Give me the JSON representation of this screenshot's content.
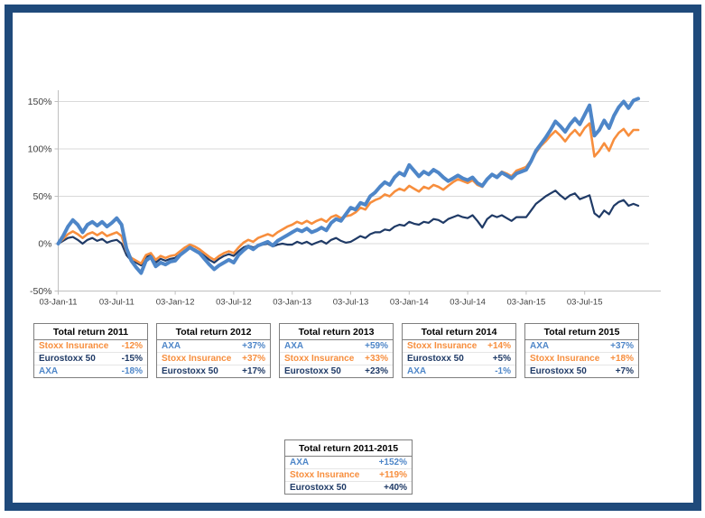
{
  "frame": {
    "border_color": "#1F4A7B"
  },
  "colors": {
    "axa": "#4E86C8",
    "stoxx": "#F78E3D",
    "euro": "#1F3A66",
    "grid": "#D9D9D9",
    "axis": "#BFBFBF",
    "tick_label": "#3F3F3F",
    "table_border": "#7F7F7F"
  },
  "chart_data": {
    "type": "line",
    "title": "",
    "xlabel": "",
    "ylabel": "",
    "grid": "horizontal",
    "legend": "none",
    "ylim": [
      -50,
      160
    ],
    "y_ticks": [
      {
        "label": "150%",
        "value": 150
      },
      {
        "label": "100%",
        "value": 100
      },
      {
        "label": "50%",
        "value": 50
      },
      {
        "label": "0%",
        "value": 0
      },
      {
        "label": "-50%",
        "value": -50
      }
    ],
    "x_ticks": [
      {
        "label": "03-Jan-11",
        "month": 0
      },
      {
        "label": "03-Jul-11",
        "month": 6
      },
      {
        "label": "03-Jan-12",
        "month": 12
      },
      {
        "label": "03-Jul-12",
        "month": 18
      },
      {
        "label": "03-Jan-13",
        "month": 24
      },
      {
        "label": "03-Jul-13",
        "month": 30
      },
      {
        "label": "03-Jan-14",
        "month": 36
      },
      {
        "label": "03-Jul-14",
        "month": 42
      },
      {
        "label": "03-Jan-15",
        "month": 48
      },
      {
        "label": "03-Jul-15",
        "month": 54
      }
    ],
    "sample_interval_months": 0.5,
    "unit": "cumulative total return %",
    "series": [
      {
        "name": "Eurostoxx 50",
        "key": "euro",
        "color": "#1F3A66",
        "width": 2.2,
        "values": [
          0,
          3,
          6,
          7,
          4,
          0,
          4,
          6,
          3,
          5,
          1,
          3,
          4,
          0,
          -12,
          -18,
          -20,
          -23,
          -14,
          -12,
          -20,
          -16,
          -18,
          -16,
          -15,
          -11,
          -7,
          -4,
          -6,
          -9,
          -13,
          -17,
          -20,
          -16,
          -13,
          -11,
          -13,
          -8,
          -4,
          -2,
          -4,
          -2,
          -1,
          0,
          -3,
          -1,
          0,
          -1,
          -1,
          2,
          0,
          2,
          -1,
          1,
          3,
          0,
          4,
          6,
          3,
          1,
          2,
          5,
          8,
          6,
          10,
          12,
          12,
          15,
          14,
          18,
          20,
          19,
          23,
          21,
          20,
          23,
          22,
          26,
          25,
          22,
          26,
          28,
          30,
          28,
          27,
          30,
          24,
          17,
          26,
          30,
          28,
          30,
          27,
          24,
          28,
          28,
          28,
          35,
          42,
          46,
          50,
          53,
          56,
          51,
          47,
          51,
          53,
          47,
          49,
          51,
          32,
          28,
          35,
          31,
          40,
          44,
          46,
          40,
          42,
          40
        ]
      },
      {
        "name": "Stoxx Insurance",
        "key": "stoxx",
        "color": "#F78E3D",
        "width": 2.6,
        "values": [
          0,
          5,
          10,
          13,
          10,
          6,
          10,
          12,
          9,
          12,
          8,
          10,
          12,
          8,
          -8,
          -15,
          -18,
          -21,
          -12,
          -10,
          -17,
          -13,
          -15,
          -13,
          -12,
          -8,
          -4,
          -1,
          -3,
          -6,
          -10,
          -14,
          -17,
          -13,
          -10,
          -8,
          -10,
          -4,
          1,
          4,
          2,
          6,
          8,
          10,
          8,
          12,
          15,
          18,
          20,
          23,
          21,
          24,
          21,
          24,
          26,
          23,
          28,
          30,
          27,
          29,
          30,
          33,
          38,
          36,
          43,
          46,
          48,
          52,
          50,
          55,
          58,
          56,
          61,
          58,
          55,
          60,
          58,
          62,
          60,
          57,
          61,
          65,
          68,
          66,
          64,
          67,
          62,
          60,
          68,
          73,
          71,
          76,
          74,
          71,
          77,
          79,
          81,
          88,
          96,
          103,
          108,
          114,
          119,
          114,
          108,
          115,
          120,
          114,
          122,
          127,
          92,
          98,
          106,
          98,
          110,
          117,
          121,
          114,
          120,
          120
        ]
      },
      {
        "name": "AXA",
        "key": "axa",
        "color": "#4E86C8",
        "width": 4,
        "values": [
          0,
          8,
          18,
          25,
          20,
          12,
          20,
          23,
          19,
          23,
          18,
          22,
          27,
          20,
          -5,
          -18,
          -25,
          -31,
          -18,
          -14,
          -24,
          -20,
          -22,
          -19,
          -18,
          -12,
          -8,
          -4,
          -7,
          -10,
          -16,
          -22,
          -27,
          -23,
          -20,
          -17,
          -20,
          -12,
          -7,
          -3,
          -6,
          -2,
          0,
          2,
          -2,
          3,
          6,
          9,
          12,
          15,
          13,
          16,
          12,
          14,
          17,
          14,
          22,
          26,
          24,
          31,
          38,
          36,
          43,
          41,
          50,
          54,
          60,
          65,
          62,
          70,
          75,
          72,
          83,
          77,
          71,
          76,
          73,
          78,
          75,
          70,
          66,
          69,
          72,
          69,
          67,
          70,
          64,
          61,
          68,
          73,
          70,
          75,
          72,
          69,
          74,
          76,
          78,
          87,
          98,
          105,
          112,
          120,
          129,
          124,
          118,
          126,
          132,
          126,
          136,
          146,
          114,
          120,
          130,
          122,
          135,
          144,
          150,
          143,
          151,
          153
        ]
      }
    ]
  },
  "year_tables": [
    {
      "title": "Total return 2011",
      "rows": [
        {
          "name": "Stoxx Insurance",
          "value": "-12%",
          "key": "stoxx"
        },
        {
          "name": "Eurostoxx 50",
          "value": "-15%",
          "key": "euro"
        },
        {
          "name": "AXA",
          "value": "-18%",
          "key": "axa"
        }
      ]
    },
    {
      "title": "Total return 2012",
      "rows": [
        {
          "name": "AXA",
          "value": "+37%",
          "key": "axa"
        },
        {
          "name": "Stoxx Insurance",
          "value": "+37%",
          "key": "stoxx"
        },
        {
          "name": "Eurostoxx 50",
          "value": "+17%",
          "key": "euro"
        }
      ]
    },
    {
      "title": "Total return 2013",
      "rows": [
        {
          "name": "AXA",
          "value": "+59%",
          "key": "axa"
        },
        {
          "name": "Stoxx Insurance",
          "value": "+33%",
          "key": "stoxx"
        },
        {
          "name": "Eurostoxx 50",
          "value": "+23%",
          "key": "euro"
        }
      ]
    },
    {
      "title": "Total return 2014",
      "rows": [
        {
          "name": "Stoxx Insurance",
          "value": "+14%",
          "key": "stoxx"
        },
        {
          "name": "Eurostoxx 50",
          "value": "+5%",
          "key": "euro"
        },
        {
          "name": "AXA",
          "value": "-1%",
          "key": "axa"
        }
      ]
    },
    {
      "title": "Total return 2015",
      "rows": [
        {
          "name": "AXA",
          "value": "+37%",
          "key": "axa"
        },
        {
          "name": "Stoxx Insurance",
          "value": "+18%",
          "key": "stoxx"
        },
        {
          "name": "Eurostoxx 50",
          "value": "+7%",
          "key": "euro"
        }
      ]
    }
  ],
  "summary_table": {
    "title": "Total return 2011-2015",
    "rows": [
      {
        "name": "AXA",
        "value": "+152%",
        "key": "axa"
      },
      {
        "name": "Stoxx Insurance",
        "value": "+119%",
        "key": "stoxx"
      },
      {
        "name": "Eurostoxx 50",
        "value": "+40%",
        "key": "euro"
      }
    ]
  }
}
